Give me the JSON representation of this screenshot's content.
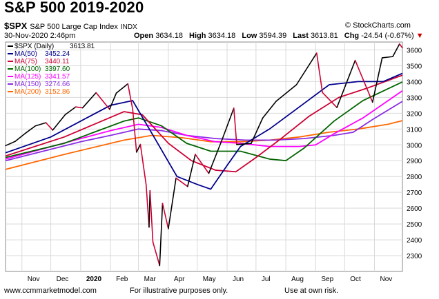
{
  "header": {
    "title": "S&P 500 2019-2020",
    "symbol": "$SPX",
    "name": "S&P 500 Large Cap Index",
    "exchange": "INDX",
    "copyright": "© StockCharts.com",
    "timestamp": "30-Nov-2020 2:46pm",
    "open_label": "Open",
    "open": "3634.18",
    "high_label": "High",
    "high": "3634.18",
    "low_label": "Low",
    "low": "3594.39",
    "last_label": "Last",
    "last": "3613.81",
    "chg_label": "Chg",
    "chg": "-24.54 (-0.67%)",
    "chg_arrow": "▼"
  },
  "footer": {
    "site": "www.ccmmarketmodel.com",
    "note1": "For illustrative purposes only.",
    "note2": "Use at own risk."
  },
  "colors": {
    "price": "#000000",
    "down": "#cc0033",
    "ma50": "#00008b",
    "ma75": "#cc0033",
    "ma100": "#006400",
    "ma125": "#ff00ff",
    "ma150": "#8a2be2",
    "ma200": "#ff6600",
    "grid": "#d9d9d9"
  },
  "chart_data": {
    "type": "line",
    "ylim": [
      2200,
      3650
    ],
    "yticks": [
      2300,
      2400,
      2500,
      2600,
      2700,
      2800,
      2900,
      3000,
      3100,
      3200,
      3300,
      3400,
      3500,
      3600
    ],
    "x_start": "2019-10-15",
    "x_end": "2020-11-30",
    "month_ticks": [
      {
        "label": "Nov",
        "date": "2019-11-01"
      },
      {
        "label": "Dec",
        "date": "2019-12-01"
      },
      {
        "label": "2020",
        "date": "2020-01-01",
        "bold": true
      },
      {
        "label": "Feb",
        "date": "2020-02-01"
      },
      {
        "label": "Mar",
        "date": "2020-03-01"
      },
      {
        "label": "Apr",
        "date": "2020-04-01"
      },
      {
        "label": "May",
        "date": "2020-05-01"
      },
      {
        "label": "Jun",
        "date": "2020-06-01"
      },
      {
        "label": "Jul",
        "date": "2020-07-01"
      },
      {
        "label": "Aug",
        "date": "2020-08-01"
      },
      {
        "label": "Sep",
        "date": "2020-09-01"
      },
      {
        "label": "Oct",
        "date": "2020-10-01"
      },
      {
        "label": "Nov",
        "date": "2020-11-01"
      }
    ],
    "grid": true,
    "legend_position": "top-left",
    "series": [
      {
        "name": "$SPX (Daily)",
        "label": "3613.81",
        "key": "price",
        "points": [
          [
            "2019-10-15",
            2995
          ],
          [
            "2019-10-25",
            3022
          ],
          [
            "2019-11-05",
            3075
          ],
          [
            "2019-11-15",
            3120
          ],
          [
            "2019-11-26",
            3140
          ],
          [
            "2019-12-03",
            3093
          ],
          [
            "2019-12-16",
            3191
          ],
          [
            "2019-12-27",
            3240
          ],
          [
            "2020-01-03",
            3234
          ],
          [
            "2020-01-17",
            3330
          ],
          [
            "2020-01-31",
            3225
          ],
          [
            "2020-02-07",
            3327
          ],
          [
            "2020-02-19",
            3386
          ],
          [
            "2020-02-24",
            3225
          ],
          [
            "2020-02-28",
            2954
          ],
          [
            "2020-03-03",
            3003
          ],
          [
            "2020-03-09",
            2746
          ],
          [
            "2020-03-12",
            2480
          ],
          [
            "2020-03-13",
            2711
          ],
          [
            "2020-03-16",
            2386
          ],
          [
            "2020-03-23",
            2237
          ],
          [
            "2020-03-26",
            2630
          ],
          [
            "2020-04-01",
            2470
          ],
          [
            "2020-04-09",
            2790
          ],
          [
            "2020-04-21",
            2737
          ],
          [
            "2020-04-29",
            2940
          ],
          [
            "2020-05-13",
            2820
          ],
          [
            "2020-05-27",
            3036
          ],
          [
            "2020-06-08",
            3232
          ],
          [
            "2020-06-11",
            3002
          ],
          [
            "2020-06-26",
            3009
          ],
          [
            "2020-07-08",
            3170
          ],
          [
            "2020-07-22",
            3276
          ],
          [
            "2020-08-12",
            3380
          ],
          [
            "2020-09-02",
            3580
          ],
          [
            "2020-09-08",
            3331
          ],
          [
            "2020-09-23",
            3236
          ],
          [
            "2020-10-12",
            3534
          ],
          [
            "2020-10-30",
            3270
          ],
          [
            "2020-11-09",
            3550
          ],
          [
            "2020-11-20",
            3558
          ],
          [
            "2020-11-27",
            3638
          ],
          [
            "2020-11-30",
            3613
          ]
        ]
      },
      {
        "name": "MA(50)",
        "label": "3452.24",
        "key": "ma50",
        "points": [
          [
            "2019-10-15",
            2950
          ],
          [
            "2019-12-01",
            3050
          ],
          [
            "2020-01-01",
            3150
          ],
          [
            "2020-02-01",
            3250
          ],
          [
            "2020-02-24",
            3280
          ],
          [
            "2020-03-20",
            3020
          ],
          [
            "2020-04-10",
            2800
          ],
          [
            "2020-05-01",
            2750
          ],
          [
            "2020-05-15",
            2720
          ],
          [
            "2020-06-01",
            2870
          ],
          [
            "2020-06-15",
            2990
          ],
          [
            "2020-07-15",
            3100
          ],
          [
            "2020-08-15",
            3240
          ],
          [
            "2020-09-15",
            3380
          ],
          [
            "2020-10-15",
            3400
          ],
          [
            "2020-11-10",
            3400
          ],
          [
            "2020-11-30",
            3452
          ]
        ]
      },
      {
        "name": "MA(75)",
        "label": "3440.11",
        "key": "ma75",
        "points": [
          [
            "2019-10-15",
            2930
          ],
          [
            "2019-12-15",
            3050
          ],
          [
            "2020-01-15",
            3130
          ],
          [
            "2020-02-15",
            3210
          ],
          [
            "2020-03-05",
            3190
          ],
          [
            "2020-04-01",
            3010
          ],
          [
            "2020-04-25",
            2900
          ],
          [
            "2020-05-20",
            2840
          ],
          [
            "2020-06-10",
            2830
          ],
          [
            "2020-07-01",
            2920
          ],
          [
            "2020-07-25",
            3030
          ],
          [
            "2020-08-25",
            3180
          ],
          [
            "2020-09-25",
            3300
          ],
          [
            "2020-10-25",
            3360
          ],
          [
            "2020-11-30",
            3440
          ]
        ]
      },
      {
        "name": "MA(100)",
        "label": "3397.60",
        "key": "ma100",
        "points": [
          [
            "2019-10-15",
            2920
          ],
          [
            "2019-12-15",
            3010
          ],
          [
            "2020-01-15",
            3080
          ],
          [
            "2020-02-15",
            3150
          ],
          [
            "2020-03-01",
            3170
          ],
          [
            "2020-03-25",
            3120
          ],
          [
            "2020-04-20",
            3010
          ],
          [
            "2020-05-15",
            2960
          ],
          [
            "2020-06-15",
            2960
          ],
          [
            "2020-07-15",
            2910
          ],
          [
            "2020-08-01",
            2900
          ],
          [
            "2020-08-20",
            2980
          ],
          [
            "2020-09-20",
            3150
          ],
          [
            "2020-10-20",
            3280
          ],
          [
            "2020-11-30",
            3398
          ]
        ]
      },
      {
        "name": "MA(125)",
        "label": "3341.57",
        "key": "ma125",
        "points": [
          [
            "2019-10-15",
            2910
          ],
          [
            "2020-01-01",
            3040
          ],
          [
            "2020-02-01",
            3090
          ],
          [
            "2020-03-01",
            3130
          ],
          [
            "2020-03-25",
            3110
          ],
          [
            "2020-04-20",
            3060
          ],
          [
            "2020-05-20",
            3020
          ],
          [
            "2020-06-15",
            3010
          ],
          [
            "2020-07-15",
            2990
          ],
          [
            "2020-08-15",
            2990
          ],
          [
            "2020-09-01",
            3000
          ],
          [
            "2020-09-20",
            3070
          ],
          [
            "2020-10-20",
            3170
          ],
          [
            "2020-11-30",
            3342
          ]
        ]
      },
      {
        "name": "MA(150)",
        "label": "3274.66",
        "key": "ma150",
        "points": [
          [
            "2019-10-15",
            2900
          ],
          [
            "2020-01-01",
            3020
          ],
          [
            "2020-02-01",
            3060
          ],
          [
            "2020-03-01",
            3100
          ],
          [
            "2020-03-25",
            3090
          ],
          [
            "2020-04-20",
            3060
          ],
          [
            "2020-05-20",
            3040
          ],
          [
            "2020-06-20",
            3030
          ],
          [
            "2020-07-20",
            3030
          ],
          [
            "2020-08-20",
            3040
          ],
          [
            "2020-09-20",
            3060
          ],
          [
            "2020-10-10",
            3080
          ],
          [
            "2020-10-30",
            3160
          ],
          [
            "2020-11-30",
            3275
          ]
        ]
      },
      {
        "name": "MA(200)",
        "label": "3152.86",
        "key": "ma200",
        "points": [
          [
            "2019-10-15",
            2845
          ],
          [
            "2019-12-15",
            2940
          ],
          [
            "2020-02-15",
            3030
          ],
          [
            "2020-03-15",
            3060
          ],
          [
            "2020-04-15",
            3045
          ],
          [
            "2020-05-15",
            3020
          ],
          [
            "2020-06-15",
            3020
          ],
          [
            "2020-07-15",
            3030
          ],
          [
            "2020-08-15",
            3050
          ],
          [
            "2020-09-15",
            3080
          ],
          [
            "2020-10-15",
            3100
          ],
          [
            "2020-11-15",
            3130
          ],
          [
            "2020-11-30",
            3153
          ]
        ]
      }
    ]
  }
}
